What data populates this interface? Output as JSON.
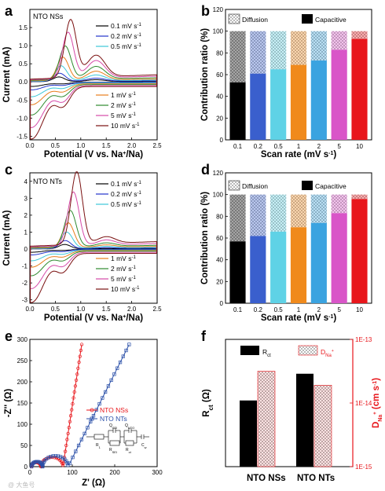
{
  "chart_data": [
    {
      "panel": "a",
      "type": "line",
      "title": "NTO NSs",
      "title_color": "#e8161b",
      "xlabel": "Potential (V vs. Na+/Na)",
      "ylabel": "Current (mA)",
      "xlim": [
        0.0,
        2.5
      ],
      "ylim": [
        -1.6,
        2.0
      ],
      "xticks": [
        "0.0",
        "0.5",
        "1.0",
        "1.5",
        "2.0",
        "2.5"
      ],
      "yticks": [
        "-1.5",
        "-1.0",
        "-0.5",
        "0.0",
        "0.5",
        "1.0",
        "1.5"
      ],
      "legend_top": [
        "0.1 mV s-1",
        "0.2 mV s-1",
        "0.5 mV s-1"
      ],
      "legend_bottom": [
        "1 mV s-1",
        "2 mV s-1",
        "5 mV s-1",
        "10 mV s-1"
      ],
      "series": [
        {
          "name": "0.1 mV s-1",
          "color": "#000000",
          "scale": 0.08
        },
        {
          "name": "0.2 mV s-1",
          "color": "#2233cc",
          "scale": 0.14
        },
        {
          "name": "0.5 mV s-1",
          "color": "#3cc8d8",
          "scale": 0.26
        },
        {
          "name": "1 mV s-1",
          "color": "#e87e1c",
          "scale": 0.4
        },
        {
          "name": "2 mV s-1",
          "color": "#2e8a2e",
          "scale": 0.58
        },
        {
          "name": "5 mV s-1",
          "color": "#d64aa8",
          "scale": 0.8
        },
        {
          "name": "10 mV s-1",
          "color": "#7a1010",
          "scale": 1.0
        }
      ],
      "peaks_10mV": {
        "anodic_peak": [
          0.8,
          1.6
        ],
        "anodic_shoulder": [
          1.3,
          0.6
        ],
        "cathodic_min": [
          0.03,
          -1.45
        ]
      }
    },
    {
      "panel": "b",
      "type": "bar",
      "categories": [
        "0.1",
        "0.2",
        "0.5",
        "1",
        "2",
        "5",
        "10"
      ],
      "capacitive": [
        53,
        61,
        65,
        69,
        73,
        83,
        93
      ],
      "diffusion": [
        47,
        39,
        35,
        31,
        27,
        17,
        7
      ],
      "colors": [
        "#000000",
        "#3a5fcd",
        "#5fd2e6",
        "#f08a1c",
        "#3aa3e0",
        "#d955c8",
        "#e8161b"
      ],
      "xlabel": "Scan rate (mV s-1)",
      "ylabel": "Contribution ratio (%)",
      "ylim": [
        0,
        120
      ],
      "yticks": [
        "0",
        "20",
        "40",
        "60",
        "80",
        "100",
        "120"
      ],
      "legend": [
        "Diffusion",
        "Capacitive"
      ]
    },
    {
      "panel": "c",
      "type": "line",
      "title": "NTO NTs",
      "title_color": "#2233cc",
      "xlabel": "Potential (V vs. Na+/Na)",
      "ylabel": "Current (mA)",
      "xlim": [
        0.0,
        2.5
      ],
      "ylim": [
        -3.2,
        4.5
      ],
      "xticks": [
        "0.0",
        "0.5",
        "1.0",
        "1.5",
        "2.0",
        "2.5"
      ],
      "yticks": [
        "-3",
        "-2",
        "-1",
        "0",
        "1",
        "2",
        "3",
        "4"
      ],
      "legend_top": [
        "0.1 mV s-1",
        "0.2 mV s-1",
        "0.5 mV s-1"
      ],
      "legend_bottom": [
        "1 mV s-1",
        "2 mV s-1",
        "5 mV s-1",
        "10 mV s-1"
      ],
      "series": [
        {
          "name": "0.1 mV s-1",
          "color": "#000000",
          "scale": 0.06
        },
        {
          "name": "0.2 mV s-1",
          "color": "#2233cc",
          "scale": 0.11
        },
        {
          "name": "0.5 mV s-1",
          "color": "#3cc8d8",
          "scale": 0.22
        },
        {
          "name": "1 mV s-1",
          "color": "#e87e1c",
          "scale": 0.34
        },
        {
          "name": "2 mV s-1",
          "color": "#2e8a2e",
          "scale": 0.5
        },
        {
          "name": "5 mV s-1",
          "color": "#d64aa8",
          "scale": 0.74
        },
        {
          "name": "10 mV s-1",
          "color": "#7a1010",
          "scale": 1.0
        }
      ],
      "peaks_10mV": {
        "anodic_peak": [
          0.92,
          4.3
        ],
        "anodic_shoulder": [
          1.5,
          0.4
        ],
        "cathodic_min": [
          0.03,
          -2.9
        ]
      }
    },
    {
      "panel": "d",
      "type": "bar",
      "categories": [
        "0.1",
        "0.2",
        "0.5",
        "1",
        "2",
        "5",
        "10"
      ],
      "capacitive": [
        57,
        62,
        66,
        70,
        74,
        83,
        96
      ],
      "diffusion": [
        43,
        38,
        34,
        30,
        26,
        17,
        4
      ],
      "colors": [
        "#000000",
        "#3a5fcd",
        "#5fd2e6",
        "#f08a1c",
        "#3aa3e0",
        "#d955c8",
        "#e8161b"
      ],
      "xlabel": "Scan rate (mV s-1)",
      "ylabel": "Contribution ratio (%)",
      "ylim": [
        0,
        120
      ],
      "yticks": [
        "0",
        "20",
        "40",
        "60",
        "80",
        "100",
        "120"
      ],
      "legend": [
        "Diffusion",
        "Capacitive"
      ]
    },
    {
      "panel": "e",
      "type": "scatter",
      "xlabel": "Z' (Ω)",
      "ylabel": "-Z'' (Ω)",
      "xlim": [
        0,
        300
      ],
      "ylim": [
        0,
        300
      ],
      "xticks": [
        "0",
        "100",
        "200",
        "300"
      ],
      "yticks": [
        "0",
        "50",
        "100",
        "150",
        "200",
        "250",
        "300"
      ],
      "series": [
        {
          "name": "NTO NSs",
          "color": "#e8161b"
        },
        {
          "name": "NTO NTs",
          "color": "#2a4fa8"
        }
      ],
      "circuit_labels": {
        "r1": "R",
        "r1_sub": "1",
        "qsei": "Q",
        "qsei_sub": "SEI",
        "rsei": "R",
        "rsei_sub": "SEI",
        "qnto": "Q",
        "qnto_sub": "NTO",
        "rct": "R",
        "rct_sub": "ct",
        "cw": "C",
        "cw_sub": "w"
      }
    },
    {
      "panel": "f",
      "type": "bar",
      "categories": [
        "NTO NSs",
        "NTO NTs"
      ],
      "rct": [
        52,
        73
      ],
      "dna_log10": [
        -13.5,
        -13.72
      ],
      "ylabel_left": "Rct (Ω)",
      "ylabel_right": "DNa+ (cm s-1)",
      "right_ticks": [
        "1E-15",
        "1E-14",
        "1E-13"
      ],
      "legend": [
        "Rct",
        "DNa+"
      ]
    }
  ],
  "labels": {
    "a": "a",
    "b": "b",
    "c": "c",
    "d": "d",
    "e": "e",
    "f": "f",
    "a_title": "NTO NSs",
    "c_title": "NTO NTs",
    "cv_xlabel": "Potential (V vs. Na",
    "cv_xlabel_sup": "+",
    "cv_xlabel_end": "/Na)",
    "cv_ylabel": "Current (mA)",
    "bar_ylabel": "Contribution ratio (%)",
    "bar_xlabel": "Scan rate (mV s",
    "bar_xlabel_sup": "-1",
    "bar_xlabel_end": ")",
    "diffusion": "Diffusion",
    "capacitive": "Capacitive",
    "e_xlabel": "Z' (Ω)",
    "e_ylabel": "-Z'' (Ω)",
    "e_leg1": "NTO NSs",
    "e_leg2": "NTO NTs",
    "f_leg1": "R",
    "f_leg1_sub": "ct",
    "f_leg2": "D",
    "f_leg2_sub": "Na",
    "f_leg2_sup": "+",
    "f_ylabel": "R",
    "f_ylabel_sub": "ct",
    "f_ylabel_end": " (Ω)",
    "f_rlabel": "D",
    "f_rlabel_sub": "Na",
    "f_rlabel_sup": "+",
    "f_rlabel_end": " (cm s",
    "f_rlabel_sup2": "-1",
    "f_rlabel_end2": ")",
    "f_cat1": "NTO NSs",
    "f_cat2": "NTO NTs",
    "mv_unit": " mV s",
    "mv_sup": "-1",
    "watermark": "@ 大鱼号"
  }
}
